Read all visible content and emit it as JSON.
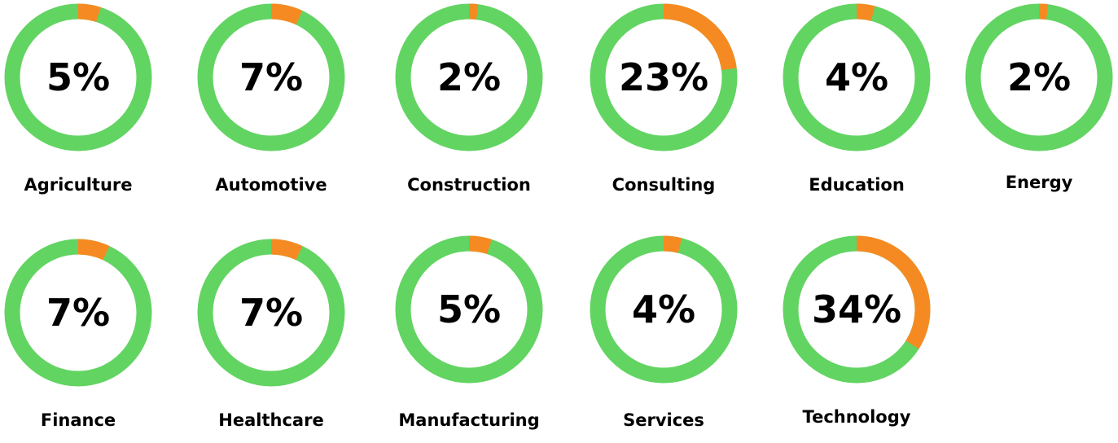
{
  "colors": {
    "base": "#62d462",
    "highlight": "#f68a22",
    "text": "#000000"
  },
  "chart_data": {
    "type": "pie",
    "variant": "donut",
    "categories": [
      "Agriculture",
      "Automotive",
      "Construction",
      "Consulting",
      "Education",
      "Energy",
      "Finance",
      "Healthcare",
      "Manufacturing",
      "Services",
      "Technology"
    ],
    "values": [
      5,
      7,
      2,
      23,
      4,
      2,
      7,
      7,
      5,
      4,
      34
    ],
    "value_labels": [
      "5%",
      "7%",
      "2%",
      "23%",
      "4%",
      "2%",
      "7%",
      "7%",
      "5%",
      "4%",
      "34%"
    ],
    "unit": "%"
  }
}
